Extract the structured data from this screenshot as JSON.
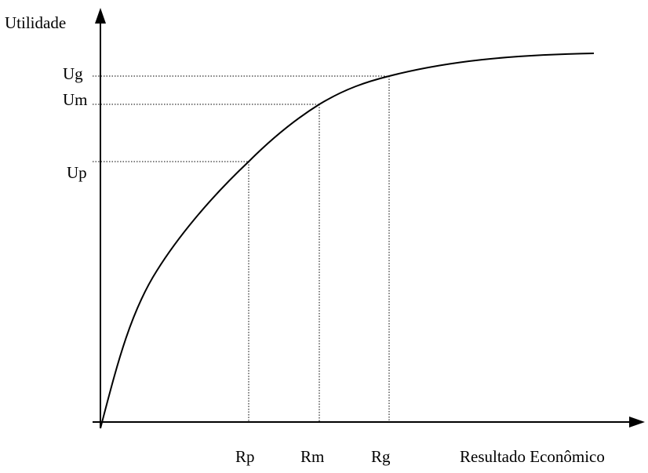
{
  "diagram": {
    "y_axis_label": "Utilidade",
    "x_axis_label": "Resultado Econômico",
    "y_ticks": {
      "ug": "Ug",
      "um": "Um",
      "up": "Up"
    },
    "x_ticks": {
      "rp": "Rp",
      "rm": "Rm",
      "rg": "Rg"
    },
    "curve": "concave utility curve rising steeply from the origin and flattening to the right",
    "reference_lines": "dotted",
    "colors": {
      "line": "#000000",
      "background": "#ffffff"
    }
  }
}
